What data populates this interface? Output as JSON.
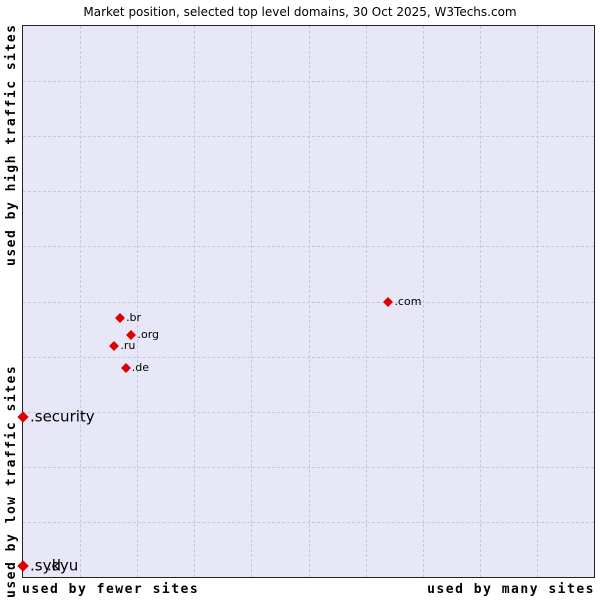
{
  "title": "Market position, selected top level domains, 30 Oct 2025, W3Techs.com",
  "axes": {
    "left_top": "used by high traffic sites",
    "left_bottom": "used by low traffic sites",
    "bottom_left": "used by fewer sites",
    "bottom_right": "used by many sites"
  },
  "colors": {
    "plot_background": "#e7e7f7",
    "marker": "#e00000",
    "grid": "#c6c6e0"
  },
  "chart_data": {
    "type": "scatter",
    "title": "Market position, selected top level domains, 30 Oct 2025, W3Techs.com",
    "x_axis": {
      "type": "qualitative",
      "low_label": "used by fewer sites",
      "high_label": "used by many sites",
      "range": [
        0,
        100
      ]
    },
    "y_axis": {
      "type": "qualitative",
      "low_label": "used by low traffic sites",
      "high_label": "used by high traffic sites",
      "range": [
        0,
        100
      ]
    },
    "grid": "dashed, 10% spacing",
    "legend": "none",
    "points": [
      {
        "label": ".com",
        "x": 64,
        "y": 50,
        "size": "small",
        "label_dx": 6
      },
      {
        "label": ".br",
        "x": 17,
        "y": 47,
        "size": "small",
        "label_dx": 6
      },
      {
        "label": ".org",
        "x": 19,
        "y": 44,
        "size": "small",
        "label_dx": 6
      },
      {
        "label": ".ru",
        "x": 16,
        "y": 42,
        "size": "small",
        "label_dx": 6
      },
      {
        "label": ".de",
        "x": 18,
        "y": 38,
        "size": "small",
        "label_dx": 6
      },
      {
        "label": ".security",
        "x": 0,
        "y": 29,
        "size": "large",
        "label_dx": 7
      },
      {
        "label": ".syd",
        "x": 0,
        "y": 2,
        "size": "large",
        "label_dx": 7
      },
      {
        "label": ".kyu",
        "x": 0,
        "y": 2,
        "size": "large",
        "label_dx": 24
      }
    ]
  }
}
